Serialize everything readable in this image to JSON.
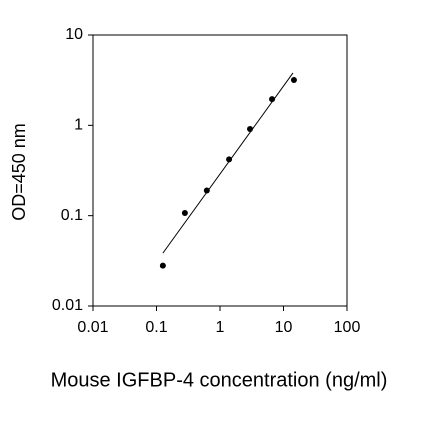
{
  "chart_data": {
    "type": "scatter",
    "x_label": "Mouse IGFBP-4 concentration (ng/ml)",
    "y_label": "OD=450 nm",
    "x": [
      0.126,
      0.28,
      0.62,
      1.39,
      2.97,
      6.6,
      14.6
    ],
    "values": [
      0.028,
      0.107,
      0.19,
      0.42,
      0.91,
      1.95,
      3.18
    ],
    "color": "#000000",
    "fit_line": {
      "x": [
        0.126,
        14.1
      ],
      "values": [
        0.0385,
        3.8
      ],
      "color": "#000000"
    },
    "xlim": [
      0.01,
      100
    ],
    "ylim": [
      0.01,
      10
    ],
    "xticks": [
      0.01,
      0.1,
      1,
      10,
      100
    ],
    "yticks": [
      0.01,
      0.1,
      1,
      10
    ],
    "xscale": "log",
    "yscale": "log",
    "grid": false
  }
}
